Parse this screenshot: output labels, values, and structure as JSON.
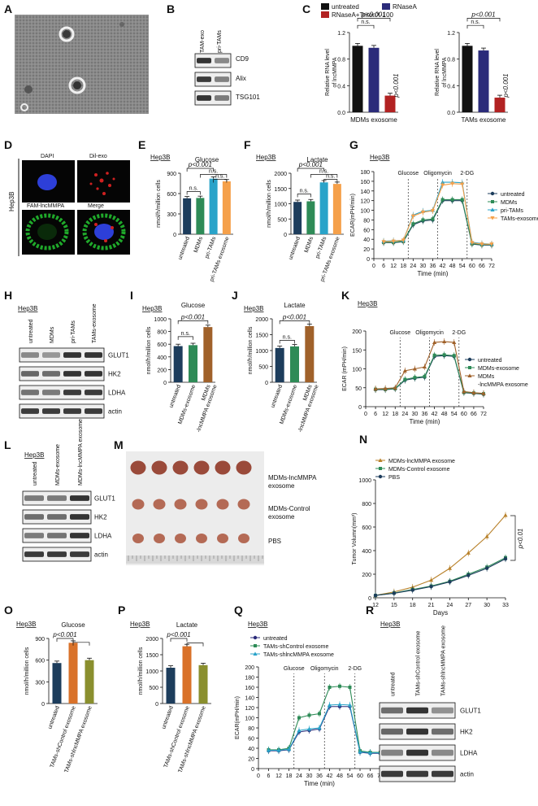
{
  "panels": [
    "A",
    "B",
    "C",
    "D",
    "E",
    "F",
    "G",
    "H",
    "I",
    "J",
    "K",
    "L",
    "M",
    "N",
    "O",
    "P",
    "Q",
    "R"
  ],
  "colors": {
    "untreated": "#1d3d5c",
    "MDMs": "#2e8b57",
    "priTAMs": "#29a3c9",
    "TAMsExo": "#f5a04a",
    "blotBg": "#eeeeee",
    "band": "#222222",
    "red": "#b22222",
    "navy": "#2b2b7a"
  },
  "B": {
    "lanes": [
      "TAM-exo",
      "pri-TAMs"
    ],
    "proteins": [
      "CD9",
      "Alix",
      "TSG101"
    ],
    "levels": [
      [
        0.95,
        0.35
      ],
      [
        0.9,
        0.4
      ],
      [
        0.95,
        0.45
      ]
    ]
  },
  "C": {
    "legend": [
      "untreated",
      "RNaseA",
      "RNaseA+TritonX-100"
    ],
    "ylabel": "Relative RNA level of lncMMPA",
    "xlabels": [
      "MDMs exosome",
      "TAMs exosome"
    ],
    "ns": "n.s.",
    "p": "p<0.001",
    "ymax": 1.2,
    "yticks": [
      "0.0",
      "0.4",
      "0.8",
      "1.2"
    ],
    "charts": [
      {
        "values": [
          1.0,
          0.97,
          0.25
        ]
      },
      {
        "values": [
          1.0,
          0.93,
          0.22
        ]
      }
    ]
  },
  "D": {
    "cell": "Hep3B",
    "labels": [
      "DAPI",
      "Dil-exo",
      "FAM-lncMMPA",
      "Merge"
    ]
  },
  "E": {
    "cell": "Hep3B",
    "title": "Glucose",
    "ylabel": "nmol/h/million cells",
    "yticks": [
      "0",
      "300",
      "600",
      "900"
    ],
    "ymax": 900,
    "ns": "n.s.",
    "p": "p<0.001",
    "categories": [
      "untreated",
      "MDMs",
      "pri-TAMs",
      "pri-TAMs exosome"
    ],
    "values": [
      530,
      535,
      820,
      780
    ]
  },
  "F": {
    "cell": "Hep3B",
    "title": "Lactate",
    "ylabel": "nmol/h/million cells",
    "yticks": [
      "0",
      "500",
      "1000",
      "1500",
      "2000"
    ],
    "ymax": 2000,
    "ns": "n.s.",
    "p": "p<0.001",
    "categories": [
      "untreated",
      "MDMs",
      "pri-TAMs",
      "pri-TAMs exosome"
    ],
    "values": [
      1060,
      1080,
      1700,
      1650
    ]
  },
  "G": {
    "cell": "Hep3B",
    "ylabel": "ECAR(mPH/min)",
    "xlabel": "Time (min)",
    "yticks": [
      "0",
      "20",
      "40",
      "60",
      "80",
      "100",
      "120",
      "140",
      "160",
      "180"
    ],
    "xticks": [
      "0",
      "6",
      "12",
      "18",
      "24",
      "30",
      "36",
      "42",
      "48",
      "54",
      "60",
      "66",
      "72"
    ],
    "events": [
      "Glucose",
      "Oligomycin",
      "2-DG"
    ],
    "legend": [
      "untreated",
      "MDMs",
      "pri-TAMs",
      "TAMs-exosome"
    ]
  },
  "H": {
    "cell": "Hep3B",
    "lanes": [
      "untreated",
      "MDMs",
      "pri-TAMs",
      "TAMs-exosome"
    ],
    "proteins": [
      "GLUT1",
      "HK2",
      "LDHA",
      "actin"
    ]
  },
  "I": {
    "cell": "Hep3B",
    "title": "Glucose",
    "ylabel": "nmol/h/million cells",
    "yticks": [
      "0",
      "200",
      "400",
      "600",
      "800",
      "1000"
    ],
    "ymax": 1000,
    "ns": "n.s.",
    "p": "p<0.001",
    "categories": [
      "untreated",
      "MDMs-exosome",
      "MDMs -lncMMPA exosome"
    ],
    "values": [
      570,
      585,
      870
    ]
  },
  "J": {
    "cell": "Hep3B",
    "title": "Lactate",
    "ylabel": "nmol/h/million cells",
    "yticks": [
      "0",
      "500",
      "1000",
      "1500",
      "2000"
    ],
    "ymax": 2000,
    "ns": "n.s.",
    "p": "p<0.001",
    "categories": [
      "untreated",
      "MDMs-exosome",
      "MDMs -lncMMPA exosome"
    ],
    "values": [
      1080,
      1130,
      1770
    ]
  },
  "K": {
    "cell": "Hep3B",
    "ylabel": "ECAR (mPH/min)",
    "xlabel": "Time (min)",
    "yticks": [
      "0",
      "50",
      "100",
      "150",
      "200"
    ],
    "xticks": [
      "0",
      "6",
      "12",
      "18",
      "24",
      "30",
      "36",
      "42",
      "48",
      "54",
      "60",
      "66",
      "72"
    ],
    "events": [
      "Glucose",
      "Oligomycin",
      "2-DG"
    ],
    "legend": [
      "untreated",
      "MDMs-exosome",
      "MDMs",
      "-lncMMPA exosome"
    ]
  },
  "L": {
    "cell": "Hep3B",
    "lanes": [
      "untreated",
      "MDMs-exosome",
      "MDMs-lncMMPA exosome"
    ],
    "proteins": [
      "GLUT1",
      "HK2",
      "LDHA",
      "actin"
    ]
  },
  "M": {
    "rows": [
      "MDMs-lncMMPA",
      "exosome",
      "MDMs-Control",
      "exosome",
      "PBS"
    ]
  },
  "N": {
    "ylabel": "Tumor Volumn(mm³)",
    "xlabel": "Days",
    "yticks": [
      "0",
      "200",
      "400",
      "600",
      "800",
      "1000"
    ],
    "xticks": [
      "12",
      "15",
      "18",
      "21",
      "24",
      "27",
      "30",
      "33"
    ],
    "legend": [
      "MDMs-lncMMPA exosome",
      "MDMs-Control exosome",
      "PBS"
    ],
    "p": "p<0.01"
  },
  "O": {
    "cell": "Hep3B",
    "title": "Glucose",
    "ylabel": "nmol/h/million cells",
    "yticks": [
      "0",
      "300",
      "600",
      "900"
    ],
    "ymax": 900,
    "p": "p<0.001",
    "categories": [
      "untreated",
      "TAMs-shControl exosome",
      "TAMs-shlncMMPA exosome"
    ],
    "values": [
      560,
      840,
      600
    ]
  },
  "P": {
    "cell": "Hep3B",
    "title": "Lactate",
    "ylabel": "nmol/h/million cells",
    "yticks": [
      "0",
      "500",
      "1000",
      "1500",
      "2000"
    ],
    "ymax": 2000,
    "p": "p<0.001",
    "categories": [
      "untreated",
      "TAMs-shControl exosome",
      "TAMs-shlncMMPA exosome"
    ],
    "values": [
      1100,
      1760,
      1180
    ]
  },
  "Q": {
    "cell": "Hep3B",
    "ylabel": "ECAR(mPH/min)",
    "xlabel": "Time (min)",
    "yticks": [
      "0",
      "20",
      "40",
      "60",
      "80",
      "100",
      "120",
      "140",
      "160",
      "180",
      "200"
    ],
    "xticks": [
      "0",
      "6",
      "12",
      "18",
      "24",
      "30",
      "36",
      "42",
      "48",
      "54",
      "60",
      "66",
      "72"
    ],
    "events": [
      "Glucose",
      "Oligomycin",
      "2-DG"
    ],
    "legend": [
      "untreated",
      "TAMs-shControl exosome",
      "TAMs-shlncMMPA exosome"
    ]
  },
  "R": {
    "cell": "Hep3B",
    "lanes": [
      "untreated",
      "TAMs-shControl exosome",
      "TAMs-shlncMMPA exosome"
    ],
    "proteins": [
      "GLUT1",
      "HK2",
      "LDHA",
      "actin"
    ]
  },
  "chart_data": [
    {
      "panel": "C-left",
      "type": "bar",
      "categories": [
        "untreated",
        "RNaseA",
        "RNaseA+TritonX-100"
      ],
      "values": [
        1.0,
        0.97,
        0.25
      ],
      "xlabel": "MDMs exosome",
      "ylabel": "Relative RNA level of lncMMPA",
      "ylim": [
        0,
        1.2
      ]
    },
    {
      "panel": "C-right",
      "type": "bar",
      "categories": [
        "untreated",
        "RNaseA",
        "RNaseA+TritonX-100"
      ],
      "values": [
        1.0,
        0.93,
        0.22
      ],
      "xlabel": "TAMs exosome",
      "ylabel": "Relative RNA level of lncMMPA",
      "ylim": [
        0,
        1.2
      ]
    },
    {
      "panel": "E",
      "type": "bar",
      "title": "Glucose",
      "categories": [
        "untreated",
        "MDMs",
        "pri-TAMs",
        "pri-TAMs exosome"
      ],
      "values": [
        530,
        535,
        820,
        780
      ],
      "ylabel": "nmol/h/million cells",
      "ylim": [
        0,
        900
      ]
    },
    {
      "panel": "F",
      "type": "bar",
      "title": "Lactate",
      "categories": [
        "untreated",
        "MDMs",
        "pri-TAMs",
        "pri-TAMs exosome"
      ],
      "values": [
        1060,
        1080,
        1700,
        1650
      ],
      "ylabel": "nmol/h/million cells",
      "ylim": [
        0,
        2000
      ]
    },
    {
      "panel": "G",
      "type": "line",
      "x": [
        6,
        12,
        18,
        24,
        30,
        36,
        42,
        48,
        54,
        60,
        66,
        72
      ],
      "xlabel": "Time (min)",
      "ylabel": "ECAR(mPH/min)",
      "ylim": [
        0,
        180
      ],
      "xlim": [
        0,
        72
      ],
      "series": [
        {
          "name": "untreated",
          "values": [
            33,
            33,
            35,
            70,
            78,
            80,
            120,
            120,
            120,
            30,
            28,
            28
          ]
        },
        {
          "name": "MDMs",
          "values": [
            34,
            34,
            36,
            72,
            80,
            82,
            122,
            122,
            122,
            31,
            29,
            29
          ]
        },
        {
          "name": "pri-TAMs",
          "values": [
            36,
            37,
            38,
            90,
            98,
            100,
            158,
            158,
            157,
            34,
            31,
            30
          ]
        },
        {
          "name": "TAMs-exosome",
          "values": [
            35,
            36,
            38,
            88,
            96,
            99,
            152,
            155,
            154,
            33,
            30,
            30
          ]
        }
      ]
    },
    {
      "panel": "I",
      "type": "bar",
      "title": "Glucose",
      "categories": [
        "untreated",
        "MDMs-exosome",
        "MDMs -lncMMPA exosome"
      ],
      "values": [
        570,
        585,
        870
      ],
      "ylabel": "nmol/h/million cells",
      "ylim": [
        0,
        1000
      ]
    },
    {
      "panel": "J",
      "type": "bar",
      "title": "Lactate",
      "categories": [
        "untreated",
        "MDMs-exosome",
        "MDMs -lncMMPA exosome"
      ],
      "values": [
        1080,
        1130,
        1770
      ],
      "ylabel": "nmol/h/million cells",
      "ylim": [
        0,
        2000
      ]
    },
    {
      "panel": "K",
      "type": "line",
      "x": [
        6,
        12,
        18,
        24,
        30,
        36,
        42,
        48,
        54,
        60,
        66,
        72
      ],
      "xlabel": "Time (min)",
      "ylabel": "ECAR (mPH/min)",
      "ylim": [
        0,
        200
      ],
      "xlim": [
        0,
        72
      ],
      "series": [
        {
          "name": "untreated",
          "values": [
            45,
            45,
            47,
            70,
            75,
            78,
            133,
            135,
            133,
            37,
            35,
            33
          ]
        },
        {
          "name": "MDMs-exosome",
          "values": [
            46,
            46,
            48,
            72,
            77,
            80,
            136,
            137,
            135,
            38,
            36,
            34
          ]
        },
        {
          "name": "MDMs -lncMMPA exosome",
          "values": [
            47,
            48,
            50,
            95,
            100,
            105,
            170,
            172,
            170,
            40,
            37,
            35
          ]
        }
      ]
    },
    {
      "panel": "N",
      "type": "line",
      "x": [
        12,
        15,
        18,
        21,
        24,
        27,
        30,
        33
      ],
      "xlabel": "Days",
      "ylabel": "Tumor Volumn(mm³)",
      "ylim": [
        0,
        1000
      ],
      "series": [
        {
          "name": "MDMs-lncMMPA exosome",
          "values": [
            20,
            50,
            90,
            150,
            250,
            380,
            520,
            700
          ]
        },
        {
          "name": "MDMs-Control exosome",
          "values": [
            20,
            40,
            70,
            100,
            140,
            200,
            260,
            340
          ]
        },
        {
          "name": "PBS",
          "values": [
            20,
            38,
            65,
            95,
            135,
            190,
            250,
            330
          ]
        }
      ]
    },
    {
      "panel": "O",
      "type": "bar",
      "title": "Glucose",
      "categories": [
        "untreated",
        "TAMs-shControl exosome",
        "TAMs-shlncMMPA exosome"
      ],
      "values": [
        560,
        840,
        600
      ],
      "ylabel": "nmol/h/million cells",
      "ylim": [
        0,
        900
      ]
    },
    {
      "panel": "P",
      "type": "bar",
      "title": "Lactate",
      "categories": [
        "untreated",
        "TAMs-shControl exosome",
        "TAMs-shlncMMPA exosome"
      ],
      "values": [
        1100,
        1760,
        1180
      ],
      "ylabel": "nmol/h/million cells",
      "ylim": [
        0,
        2000
      ]
    },
    {
      "panel": "Q",
      "type": "line",
      "x": [
        6,
        12,
        18,
        24,
        30,
        36,
        42,
        48,
        54,
        60,
        66,
        72
      ],
      "xlabel": "Time (min)",
      "ylabel": "ECAR(mPH/min)",
      "ylim": [
        0,
        200
      ],
      "xlim": [
        0,
        72
      ],
      "series": [
        {
          "name": "untreated",
          "values": [
            35,
            35,
            37,
            72,
            75,
            78,
            122,
            122,
            122,
            32,
            30,
            30
          ]
        },
        {
          "name": "TAMs-shControl exosome",
          "values": [
            37,
            37,
            40,
            100,
            105,
            108,
            160,
            162,
            160,
            35,
            32,
            32
          ]
        },
        {
          "name": "TAMs-shlncMMPA exosome",
          "values": [
            36,
            36,
            38,
            75,
            78,
            80,
            125,
            126,
            125,
            33,
            31,
            31
          ]
        }
      ]
    }
  ]
}
